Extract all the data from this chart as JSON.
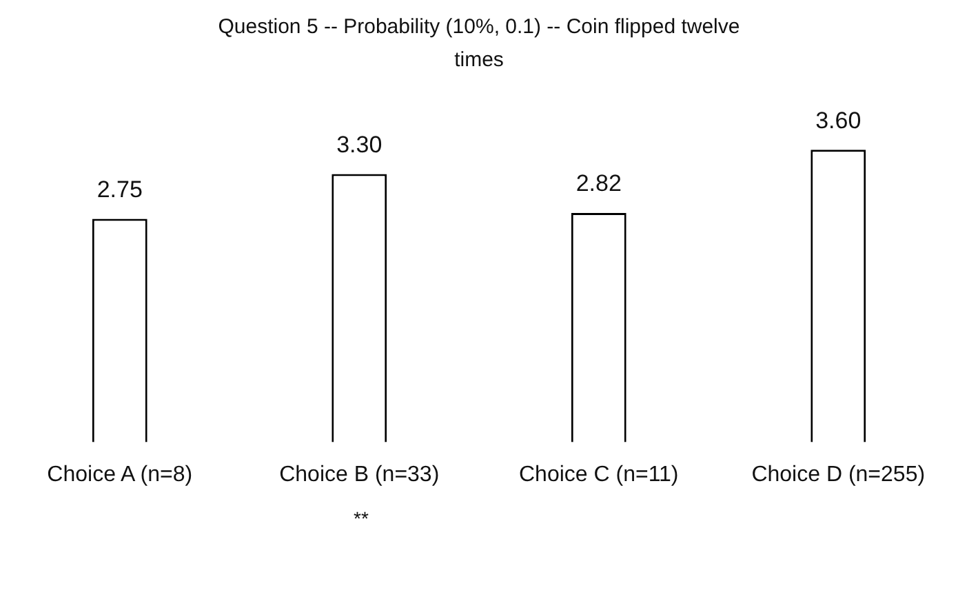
{
  "chart_data": {
    "type": "bar",
    "title": "Question 5 --  Probability (10%, 0.1) --  Coin flipped twelve times",
    "categories": [
      "Choice A (n=8)",
      "Choice B (n=33)",
      "Choice C (n=11)",
      "Choice D (n=255)"
    ],
    "values": [
      2.75,
      3.3,
      2.82,
      3.6
    ],
    "value_labels": [
      "2.75",
      "3.30",
      "2.82",
      "3.60"
    ],
    "color": "#ffffff",
    "annotations": [
      "**"
    ]
  }
}
